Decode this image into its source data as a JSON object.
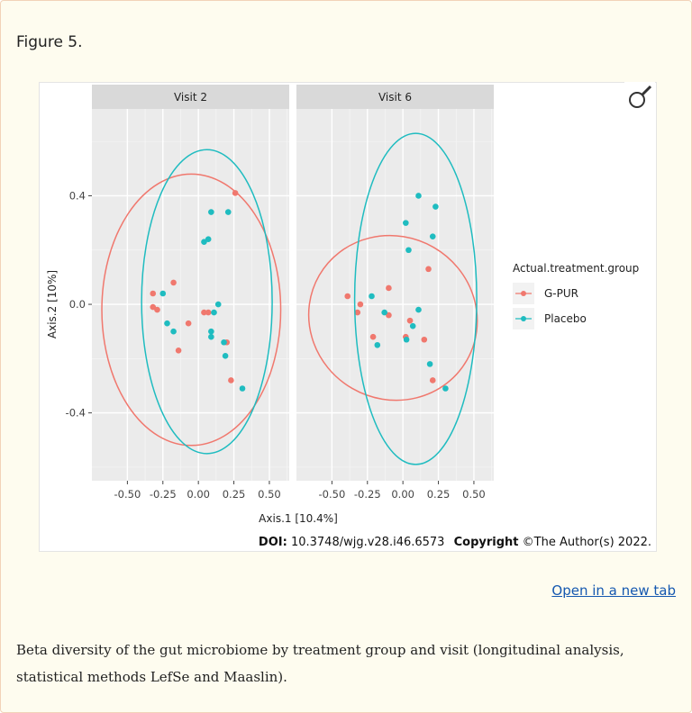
{
  "figure_label": "Figure 5.",
  "open_link": "Open in a new tab",
  "caption": "Beta diversity of the gut microbiome by treatment group and visit (longitudinal analysis, statistical methods LefSe and Maaslin).",
  "doi": {
    "label": "DOI:",
    "value": "10.3748/wjg.v28.i46.6573",
    "copyright_label": "Copyright",
    "copyright_text": "©The Author(s) 2022."
  },
  "zoom_icon": "magnifier-icon",
  "colors": {
    "G-PUR": "#f0786e",
    "Placebo": "#1fbcc0",
    "panel_bg": "#ebebeb",
    "strip_bg": "#d9d9d9"
  },
  "chart_data": {
    "type": "scatter",
    "xlabel": "Axis.1 [10.4%]",
    "ylabel": "Axis.2 [10%]",
    "xlim": [
      -0.75,
      0.64
    ],
    "ylim": [
      -0.65,
      0.72
    ],
    "xticks": [
      "-0.50",
      "-0.25",
      "0.00",
      "0.25",
      "0.50"
    ],
    "xtick_values": [
      -0.5,
      -0.25,
      0,
      0.25,
      0.5
    ],
    "yticks": [
      "0.4",
      "0.0",
      "-0.4"
    ],
    "ytick_values": [
      0.4,
      0,
      -0.4
    ],
    "grid": true,
    "legend": {
      "title": "Actual.treatment.group",
      "position": "right",
      "entries": [
        "G-PUR",
        "Placebo"
      ]
    },
    "panels": [
      {
        "title": "Visit 2",
        "series": [
          {
            "name": "G-PUR",
            "points": [
              [
                0.26,
                0.41
              ],
              [
                -0.175,
                0.08
              ],
              [
                -0.32,
                0.04
              ],
              [
                -0.32,
                -0.01
              ],
              [
                -0.29,
                -0.02
              ],
              [
                -0.07,
                -0.07
              ],
              [
                0.04,
                -0.03
              ],
              [
                0.07,
                -0.03
              ],
              [
                -0.14,
                -0.17
              ],
              [
                0.2,
                -0.14
              ],
              [
                0.23,
                -0.28
              ]
            ],
            "ellipse": {
              "cx": -0.05,
              "cy": -0.02,
              "rx": 0.63,
              "ry": 0.5,
              "angle": 0
            }
          },
          {
            "name": "Placebo",
            "points": [
              [
                0.09,
                0.34
              ],
              [
                0.21,
                0.34
              ],
              [
                0.04,
                0.23
              ],
              [
                0.07,
                0.24
              ],
              [
                -0.25,
                0.04
              ],
              [
                0.14,
                0.0
              ],
              [
                0.11,
                -0.03
              ],
              [
                -0.22,
                -0.07
              ],
              [
                -0.175,
                -0.1
              ],
              [
                0.09,
                -0.1
              ],
              [
                0.09,
                -0.12
              ],
              [
                0.18,
                -0.14
              ],
              [
                0.19,
                -0.19
              ],
              [
                0.31,
                -0.31
              ]
            ],
            "ellipse": {
              "cx": 0.06,
              "cy": 0.01,
              "rx": 0.46,
              "ry": 0.56,
              "angle": 0
            }
          }
        ]
      },
      {
        "title": "Visit 6",
        "series": [
          {
            "name": "G-PUR",
            "points": [
              [
                0.18,
                0.13
              ],
              [
                -0.1,
                0.06
              ],
              [
                -0.39,
                0.03
              ],
              [
                -0.3,
                0.0
              ],
              [
                -0.32,
                -0.03
              ],
              [
                -0.1,
                -0.04
              ],
              [
                0.05,
                -0.06
              ],
              [
                0.02,
                -0.12
              ],
              [
                -0.21,
                -0.12
              ],
              [
                0.15,
                -0.13
              ],
              [
                0.21,
                -0.28
              ]
            ],
            "ellipse": {
              "cx": -0.07,
              "cy": -0.05,
              "rx": 0.6,
              "ry": 0.3,
              "angle": 30
            }
          },
          {
            "name": "Placebo",
            "points": [
              [
                0.11,
                0.4
              ],
              [
                0.23,
                0.36
              ],
              [
                0.02,
                0.3
              ],
              [
                0.21,
                0.25
              ],
              [
                0.04,
                0.2
              ],
              [
                -0.22,
                0.03
              ],
              [
                -0.13,
                -0.03
              ],
              [
                0.11,
                -0.02
              ],
              [
                0.07,
                -0.08
              ],
              [
                0.025,
                -0.13
              ],
              [
                -0.18,
                -0.15
              ],
              [
                0.19,
                -0.22
              ],
              [
                0.3,
                -0.31
              ]
            ],
            "ellipse": {
              "cx": 0.09,
              "cy": 0.02,
              "rx": 0.43,
              "ry": 0.61,
              "angle": 0
            }
          }
        ]
      }
    ]
  }
}
